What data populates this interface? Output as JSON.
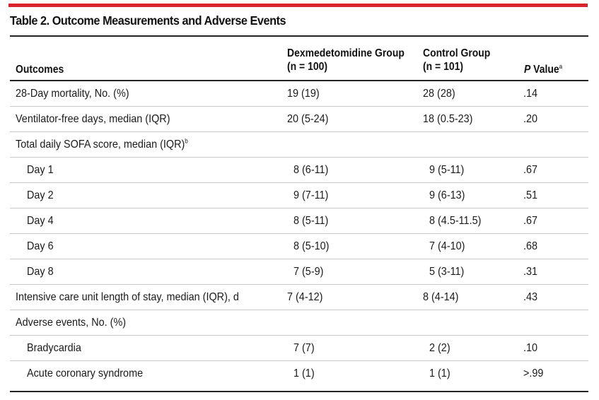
{
  "title": "Table 2. Outcome Measurements and Adverse Events",
  "headers": {
    "outcomes": "Outcomes",
    "dex_line1": "Dexmedetomidine Group",
    "dex_line2": "(n = 100)",
    "ctrl_line1": "Control Group",
    "ctrl_line2": "(n = 101)",
    "p_italic": "P",
    "p_rest": " Value",
    "p_sup": "a"
  },
  "rows": [
    {
      "label": "28-Day mortality, No. (%)",
      "sup": "",
      "dex": "19 (19)",
      "ctrl": "28 (28)",
      "p": ".14"
    },
    {
      "label": "Ventilator-free days, median (IQR)",
      "sup": "",
      "dex": "20 (5-24)",
      "ctrl": "18 (0.5-23)",
      "p": ".20"
    },
    {
      "label": "Total daily SOFA score, median (IQR)",
      "sup": "b",
      "dex": "",
      "ctrl": "",
      "p": ""
    },
    {
      "label": "Day 1",
      "sup": "",
      "dex": "8 (6-11)",
      "ctrl": "9 (5-11)",
      "p": ".67"
    },
    {
      "label": "Day 2",
      "sup": "",
      "dex": "9 (7-11)",
      "ctrl": "9 (6-13)",
      "p": ".51"
    },
    {
      "label": "Day 4",
      "sup": "",
      "dex": "8 (5-11)",
      "ctrl": "8 (4.5-11.5)",
      "p": ".67"
    },
    {
      "label": "Day 6",
      "sup": "",
      "dex": "8 (5-10)",
      "ctrl": "7 (4-10)",
      "p": ".68"
    },
    {
      "label": "Day 8",
      "sup": "",
      "dex": "7 (5-9)",
      "ctrl": "5 (3-11)",
      "p": ".31"
    },
    {
      "label": "Intensive care unit length of stay, median (IQR), d",
      "sup": "",
      "dex": "7 (4-12)",
      "ctrl": "8 (4-14)",
      "p": ".43"
    },
    {
      "label": "Adverse events, No. (%)",
      "sup": "",
      "dex": "",
      "ctrl": "",
      "p": ""
    },
    {
      "label": "Bradycardia",
      "sup": "",
      "dex": "7 (7)",
      "ctrl": "2 (2)",
      "p": ".10"
    },
    {
      "label": "Acute coronary syndrome",
      "sup": "",
      "dex": "1 (1)",
      "ctrl": "1 (1)",
      "p": ">.99"
    }
  ]
}
